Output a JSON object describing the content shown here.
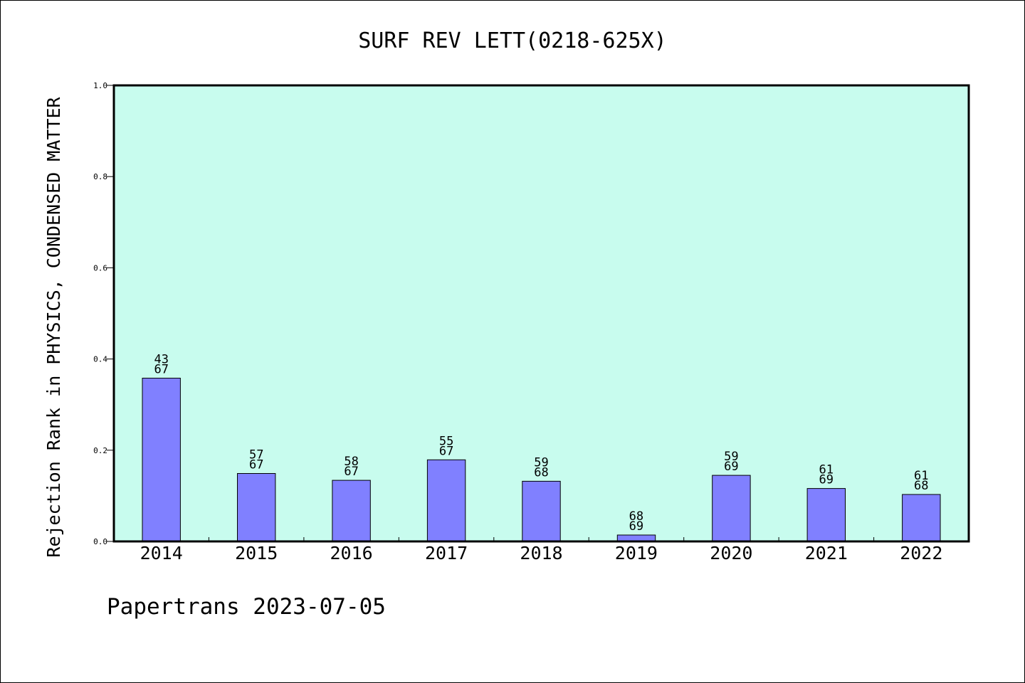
{
  "chart_data": {
    "type": "bar",
    "title": "SURF REV LETT(0218-625X)",
    "xlabel": "",
    "ylabel": "Rejection Rank in PHYSICS, CONDENSED MATTER",
    "categories": [
      "2014",
      "2015",
      "2016",
      "2017",
      "2018",
      "2019",
      "2020",
      "2021",
      "2022"
    ],
    "values": [
      0.358,
      0.149,
      0.134,
      0.179,
      0.132,
      0.014,
      0.145,
      0.116,
      0.103
    ],
    "annotations": [
      {
        "rank": "43",
        "total": "67"
      },
      {
        "rank": "57",
        "total": "67"
      },
      {
        "rank": "58",
        "total": "67"
      },
      {
        "rank": "55",
        "total": "67"
      },
      {
        "rank": "59",
        "total": "68"
      },
      {
        "rank": "68",
        "total": "69"
      },
      {
        "rank": "59",
        "total": "69"
      },
      {
        "rank": "61",
        "total": "69"
      },
      {
        "rank": "61",
        "total": "68"
      }
    ],
    "ylim": [
      0,
      1.0
    ],
    "yticks": [
      "0.0",
      "0.2",
      "0.4",
      "0.6",
      "0.8",
      "1.0"
    ],
    "grid": false,
    "legend": "none",
    "colors": {
      "plot_background": "#c8fcee",
      "bar": "#8080ff",
      "bar_edge": "#000000"
    }
  },
  "footer": {
    "text": "Papertrans 2023-07-05"
  }
}
